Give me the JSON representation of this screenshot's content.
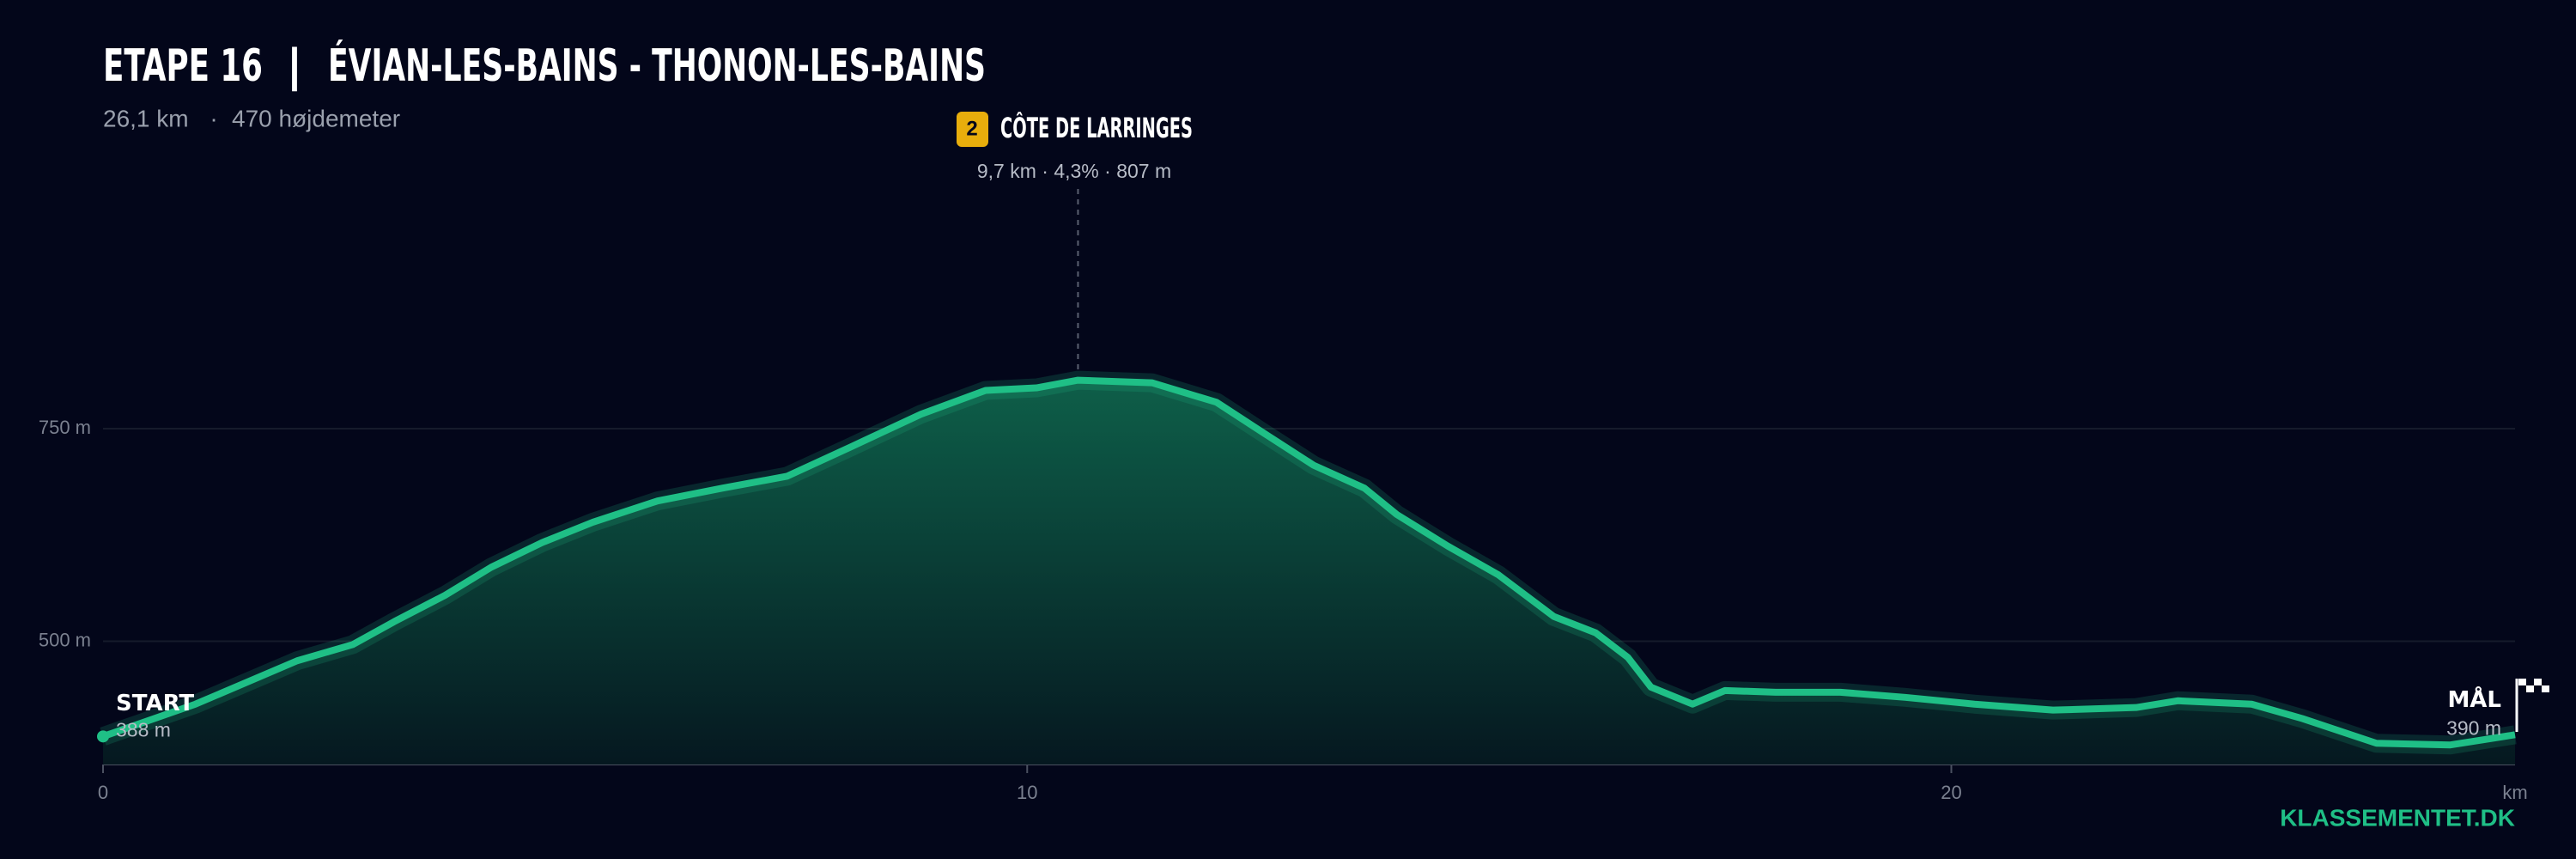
{
  "chart_data": {
    "type": "area",
    "title": "ETAPE 16",
    "title_separator": "|",
    "route": "ÉVIAN-LES-BAINS - THONON-LES-BAINS",
    "distance": "26,1 km",
    "subtitle_separator": "·",
    "elevation_gain": "470 højdemeter",
    "climb": {
      "category": "2",
      "name": "CÔTE DE LARRINGES",
      "details": "9,7 km · 4,3% · 807 m"
    },
    "start_label": "START",
    "finish_label": "MÅL",
    "x": [
      0,
      1.0,
      2.1,
      2.7,
      3.15,
      3.7,
      4.2,
      4.75,
      5.3,
      6.0,
      6.7,
      7.4,
      8.1,
      8.85,
      9.55,
      10.1,
      10.55,
      11.35,
      12.05,
      12.6,
      13.1,
      13.65,
      14.0,
      14.55,
      15.1,
      15.7,
      16.15,
      16.5,
      16.75,
      17.2,
      17.55,
      18.1,
      18.8,
      19.5,
      20.25,
      21.1,
      22.0,
      22.45,
      23.25,
      23.8,
      24.6,
      25.4,
      25.75,
      26.1
    ],
    "values": [
      388,
      426,
      477,
      496,
      523,
      554,
      587,
      616,
      640,
      665,
      680,
      694,
      729,
      767,
      795,
      798,
      807,
      804,
      781,
      742,
      707,
      680,
      649,
      612,
      578,
      529,
      510,
      481,
      446,
      426,
      442,
      440,
      440,
      434,
      426,
      419,
      422,
      430,
      426,
      409,
      380,
      378,
      384,
      390
    ],
    "value_labels": [
      "388 m",
      null,
      null,
      null,
      null,
      null,
      null,
      null,
      null,
      null,
      null,
      null,
      null,
      null,
      null,
      null,
      null,
      null,
      null,
      null,
      null,
      null,
      null,
      null,
      null,
      null,
      null,
      null,
      null,
      null,
      null,
      null,
      null,
      null,
      null,
      null,
      null,
      null,
      null,
      null,
      null,
      null,
      null,
      "390 m"
    ],
    "color": "#1fbf86",
    "xlim": [
      0,
      26.1
    ],
    "xticks": [
      0,
      10,
      20
    ],
    "x_unit": "km",
    "ylim": [
      355,
      1040
    ],
    "yticks": [
      {
        "value": 500,
        "label": "500 m"
      },
      {
        "value": 750,
        "label": "750 m"
      }
    ],
    "grid": true,
    "brand": "KLASSEMENTET.DK"
  }
}
